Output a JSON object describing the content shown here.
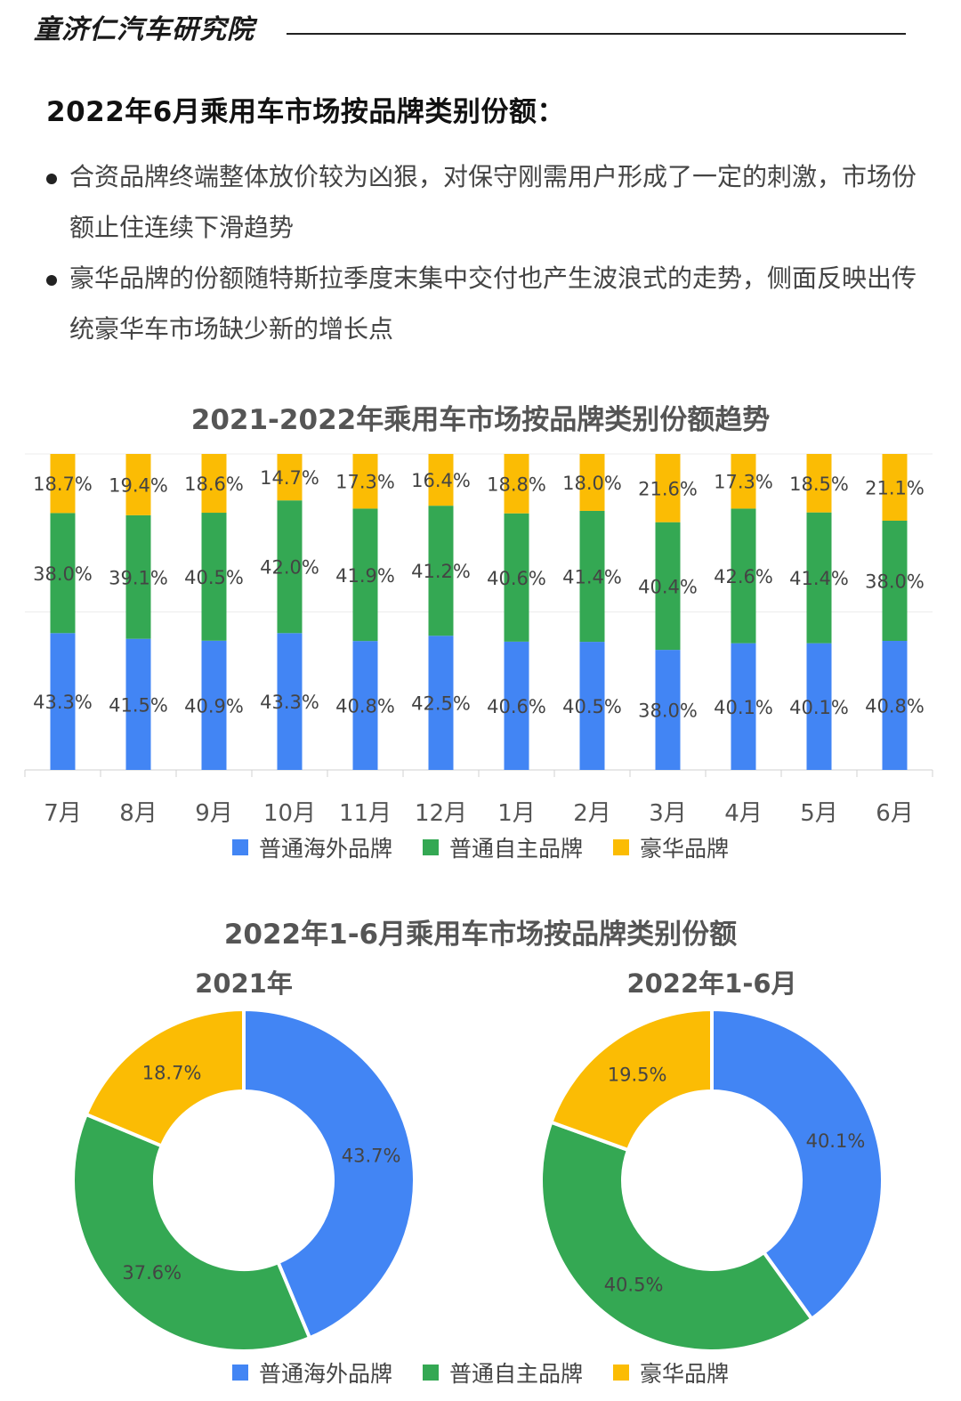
{
  "header": {
    "brand": "童济仁汽车研究院",
    "heading": "2022年6月乘用车市场按品牌类别份额："
  },
  "bullets": [
    "合资品牌终端整体放价较为凶狠，对保守刚需用户形成了一定的刺激，市场份额止住连续下滑趋势",
    "豪华品牌的份额随特斯拉季度末集中交付也产生波浪式的走势，侧面反映出传统豪华车市场缺少新的增长点"
  ],
  "colors": {
    "overseas": "#4285f4",
    "domestic": "#34a853",
    "luxury": "#fbbc04"
  },
  "legend": [
    "普通海外品牌",
    "普通自主品牌",
    "豪华品牌"
  ],
  "chart_data": [
    {
      "type": "bar",
      "stacked": true,
      "percent_stacked": true,
      "title": "2021-2022年乘用车市场按品牌类别份额趋势",
      "categories": [
        "7月",
        "8月",
        "9月",
        "10月",
        "11月",
        "12月",
        "1月",
        "2月",
        "3月",
        "4月",
        "5月",
        "6月"
      ],
      "series": [
        {
          "name": "普通海外品牌",
          "values": [
            43.3,
            41.5,
            40.9,
            43.3,
            40.8,
            42.5,
            40.6,
            40.5,
            38.0,
            40.1,
            40.1,
            40.8
          ]
        },
        {
          "name": "普通自主品牌",
          "values": [
            38.0,
            39.1,
            40.5,
            42.0,
            41.9,
            41.2,
            40.6,
            41.4,
            40.4,
            42.6,
            41.4,
            38.0
          ]
        },
        {
          "name": "豪华品牌",
          "values": [
            18.7,
            19.4,
            18.6,
            14.7,
            17.3,
            16.4,
            18.8,
            18.0,
            21.6,
            17.3,
            18.5,
            21.1
          ]
        }
      ],
      "data_labels": true,
      "legend_position": "bottom"
    },
    {
      "type": "pie",
      "donut": true,
      "title": "2022年1-6月乘用车市场按品牌类别份额",
      "subtitle": "2021年",
      "slices": [
        {
          "name": "普通海外品牌",
          "value": 43.7
        },
        {
          "name": "普通自主品牌",
          "value": 37.6
        },
        {
          "name": "豪华品牌",
          "value": 18.7
        }
      ]
    },
    {
      "type": "pie",
      "donut": true,
      "subtitle": "2022年1-6月",
      "slices": [
        {
          "name": "普通海外品牌",
          "value": 40.1
        },
        {
          "name": "普通自主品牌",
          "value": 40.5
        },
        {
          "name": "豪华品牌",
          "value": 19.5
        }
      ],
      "legend_position": "bottom"
    }
  ]
}
